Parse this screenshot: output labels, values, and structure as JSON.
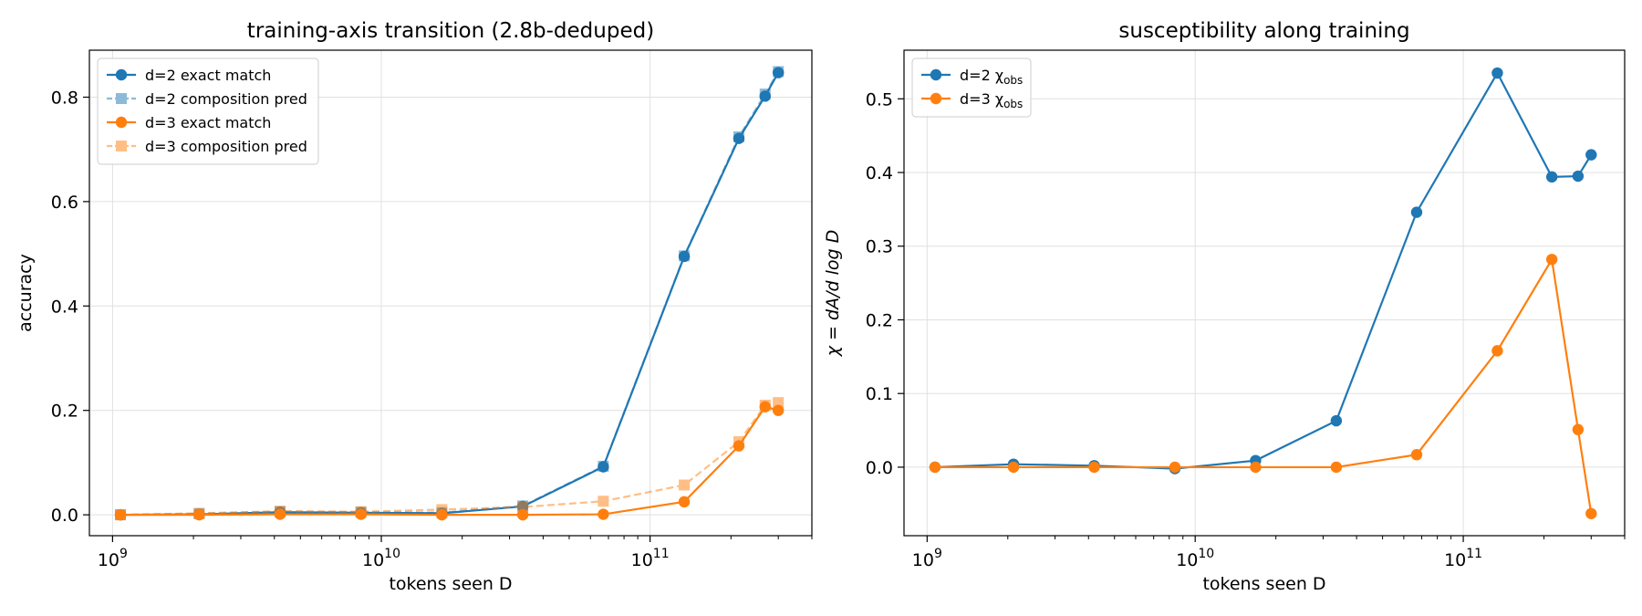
{
  "chart_data": [
    {
      "type": "line",
      "title": "training-axis transition (2.8b-deduped)",
      "xlabel": "tokens seen D",
      "ylabel": "accuracy",
      "xscale": "log",
      "xlim": [
        820000000.0,
        400000000000.0
      ],
      "ylim": [
        -0.04,
        0.89
      ],
      "yticks": [
        0.0,
        0.2,
        0.4,
        0.6,
        0.8
      ],
      "ytick_labels": [
        "0.0",
        "0.2",
        "0.4",
        "0.6",
        "0.8"
      ],
      "xticks": [
        {
          "value": 1000000000.0,
          "base": "10",
          "exp": "9"
        },
        {
          "value": 10000000000.0,
          "base": "10",
          "exp": "10"
        },
        {
          "value": 100000000000.0,
          "base": "10",
          "exp": "11"
        }
      ],
      "grid": true,
      "legend_position": "upper-left",
      "x": [
        1070000000.0,
        2100000000.0,
        4200000000.0,
        8400000000.0,
        16800000000.0,
        33600000000.0,
        67000000000.0,
        134000000000.0,
        214000000000.0,
        268000000000.0,
        300000000000.0
      ],
      "series": [
        {
          "name": "d=2 exact match",
          "color": "#1f77b4",
          "marker": "circle",
          "dash": false,
          "alpha": 1.0,
          "values": [
            0.0,
            0.001,
            0.005,
            0.004,
            0.003,
            0.016,
            0.092,
            0.495,
            0.721,
            0.802,
            0.847
          ]
        },
        {
          "name": "d=2 composition pred",
          "color": "#1f77b4",
          "marker": "square",
          "dash": true,
          "alpha": 0.5,
          "values": [
            0.0,
            0.002,
            0.006,
            0.005,
            0.004,
            0.017,
            0.093,
            0.496,
            0.724,
            0.806,
            0.849
          ]
        },
        {
          "name": "d=3 exact match",
          "color": "#ff7f0e",
          "marker": "circle",
          "dash": false,
          "alpha": 1.0,
          "values": [
            0.0,
            0.0,
            0.001,
            0.001,
            0.0,
            0.0,
            0.001,
            0.025,
            0.132,
            0.207,
            0.2
          ]
        },
        {
          "name": "d=3 composition pred",
          "color": "#ff7f0e",
          "marker": "square",
          "dash": true,
          "alpha": 0.5,
          "values": [
            0.0,
            0.003,
            0.007,
            0.006,
            0.01,
            0.015,
            0.026,
            0.057,
            0.14,
            0.21,
            0.215
          ]
        }
      ]
    },
    {
      "type": "line",
      "title": "susceptibility along training",
      "xlabel": "tokens seen D",
      "ylabel": "χ = dA/d log D",
      "xscale": "log",
      "xlim": [
        820000000.0,
        400000000000.0
      ],
      "ylim": [
        -0.093,
        0.566
      ],
      "yticks": [
        0.0,
        0.1,
        0.2,
        0.3,
        0.4,
        0.5
      ],
      "ytick_labels": [
        "0.0",
        "0.1",
        "0.2",
        "0.3",
        "0.4",
        "0.5"
      ],
      "xticks": [
        {
          "value": 1000000000.0,
          "base": "10",
          "exp": "9"
        },
        {
          "value": 10000000000.0,
          "base": "10",
          "exp": "10"
        },
        {
          "value": 100000000000.0,
          "base": "10",
          "exp": "11"
        }
      ],
      "grid": true,
      "legend_position": "upper-left",
      "x": [
        1070000000.0,
        2100000000.0,
        4200000000.0,
        8400000000.0,
        16800000000.0,
        33600000000.0,
        67000000000.0,
        134000000000.0,
        214000000000.0,
        268000000000.0,
        300000000000.0
      ],
      "series": [
        {
          "name": "d=2 χ",
          "name_sub": "obs",
          "color": "#1f77b4",
          "marker": "circle",
          "dash": false,
          "alpha": 1.0,
          "values": [
            0.0,
            0.004,
            0.002,
            -0.002,
            0.009,
            0.063,
            0.346,
            0.535,
            0.394,
            0.395,
            0.424
          ]
        },
        {
          "name": "d=3 χ",
          "name_sub": "obs",
          "color": "#ff7f0e",
          "marker": "circle",
          "dash": false,
          "alpha": 1.0,
          "values": [
            0.0,
            0.0,
            0.0,
            0.0,
            0.0,
            0.0,
            0.017,
            0.158,
            0.282,
            0.051,
            -0.063
          ]
        }
      ]
    }
  ]
}
